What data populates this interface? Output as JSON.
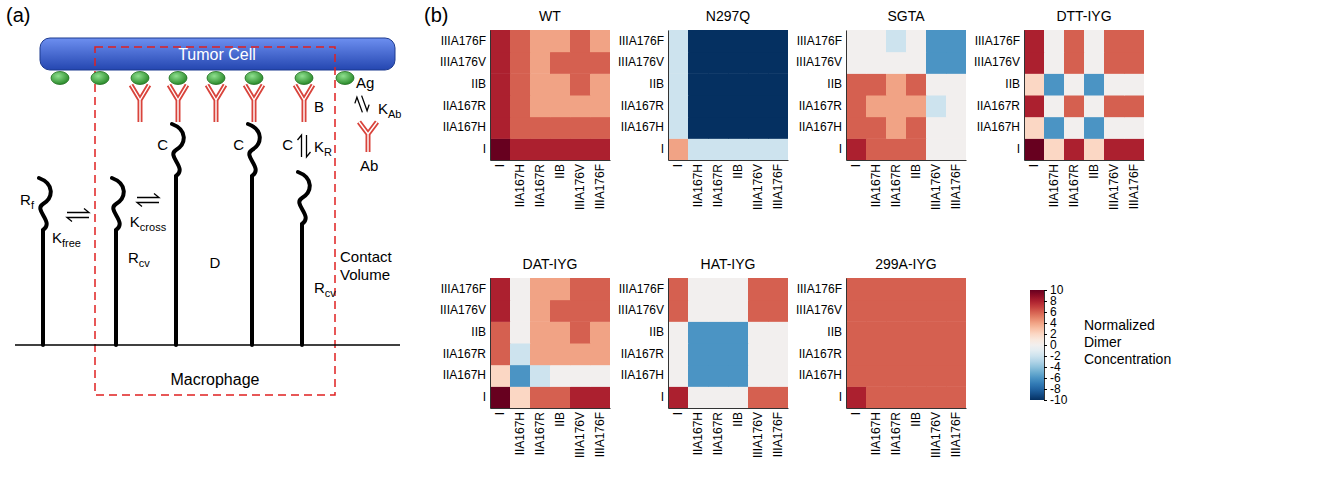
{
  "panel_labels": [
    "(a)",
    "(b)"
  ],
  "diagram": {
    "labels": [
      {
        "text": "Tumor Cell"
      },
      {
        "text": "Ag"
      },
      {
        "text": "K",
        "sub": "Ab"
      },
      {
        "text": "Ab"
      },
      {
        "text": "B"
      },
      {
        "text": "R",
        "sub": "f"
      },
      {
        "text": "K",
        "sub": "free"
      },
      {
        "text": "R",
        "sub": "cv"
      },
      {
        "text": "C"
      },
      {
        "text": "K",
        "sub": "cross"
      },
      {
        "text": "C"
      },
      {
        "text": "D"
      },
      {
        "text": "C"
      },
      {
        "text": "K",
        "sub": "R"
      },
      {
        "text": "R",
        "sub": "cv"
      },
      {
        "text": "Contact Volume"
      },
      {
        "text": "Macrophage"
      }
    ]
  },
  "chart_data": [
    {
      "type": "heatmap",
      "title": "WT",
      "x": [
        "I",
        "IIA167H",
        "IIA167R",
        "IIB",
        "IIIA176V",
        "IIIA176F"
      ],
      "y": [
        "I",
        "IIA167H",
        "IIA167R",
        "IIB",
        "IIIA176V",
        "IIIA176F"
      ],
      "cells": [
        [
          10,
          8,
          8,
          8,
          8,
          8
        ],
        [
          8,
          6,
          6,
          6,
          6,
          6
        ],
        [
          8,
          6,
          4,
          4,
          4,
          4
        ],
        [
          8,
          6,
          4,
          4,
          6,
          4
        ],
        [
          8,
          6,
          4,
          6,
          6,
          6
        ],
        [
          8,
          6,
          4,
          4,
          6,
          4
        ]
      ]
    },
    {
      "type": "heatmap",
      "title": "N297Q",
      "x": [
        "I",
        "IIA167H",
        "IIA167R",
        "IIB",
        "IIIA176V",
        "IIIA176F"
      ],
      "y": [
        "I",
        "IIA167H",
        "IIA167R",
        "IIB",
        "IIIA176V",
        "IIIA176F"
      ],
      "cells": [
        [
          4,
          -2,
          -2,
          -2,
          -2,
          -2
        ],
        [
          -2,
          -10,
          -10,
          -10,
          -10,
          -10
        ],
        [
          -2,
          -10,
          -10,
          -10,
          -10,
          -10
        ],
        [
          -2,
          -10,
          -10,
          -10,
          -10,
          -10
        ],
        [
          -2,
          -10,
          -10,
          -10,
          -10,
          -10
        ],
        [
          -2,
          -10,
          -10,
          -10,
          -10,
          -10
        ]
      ]
    },
    {
      "type": "heatmap",
      "title": "SGTA",
      "x": [
        "I",
        "IIA167H",
        "IIA167R",
        "IIB",
        "IIIA176V",
        "IIIA176F"
      ],
      "y": [
        "I",
        "IIA167H",
        "IIA167R",
        "IIB",
        "IIIA176V",
        "IIIA176F"
      ],
      "cells": [
        [
          8,
          6,
          6,
          6,
          0,
          0
        ],
        [
          6,
          6,
          4,
          6,
          0,
          0
        ],
        [
          6,
          4,
          4,
          4,
          -2,
          0
        ],
        [
          6,
          6,
          4,
          6,
          0,
          0
        ],
        [
          0,
          0,
          0,
          0,
          -6,
          -6
        ],
        [
          0,
          0,
          -2,
          0,
          -6,
          -6
        ]
      ]
    },
    {
      "type": "heatmap",
      "title": "DTT-IYG",
      "x": [
        "I",
        "IIA167H",
        "IIA167R",
        "IIB",
        "IIIA176V",
        "IIIA176F"
      ],
      "y": [
        "I",
        "IIA167H",
        "IIA167R",
        "IIB",
        "IIIA176V",
        "IIIA176F"
      ],
      "cells": [
        [
          10,
          2,
          8,
          2,
          8,
          8
        ],
        [
          2,
          -6,
          0,
          -6,
          0,
          0
        ],
        [
          8,
          0,
          6,
          0,
          6,
          6
        ],
        [
          2,
          -6,
          0,
          -6,
          0,
          0
        ],
        [
          8,
          0,
          6,
          0,
          6,
          6
        ],
        [
          8,
          0,
          6,
          0,
          6,
          6
        ]
      ]
    },
    {
      "type": "heatmap",
      "title": "DAT-IYG",
      "x": [
        "I",
        "IIA167H",
        "IIA167R",
        "IIB",
        "IIIA176V",
        "IIIA176F"
      ],
      "y": [
        "I",
        "IIA167H",
        "IIA167R",
        "IIB",
        "IIIA176V",
        "IIIA176F"
      ],
      "cells": [
        [
          10,
          2,
          6,
          6,
          8,
          8
        ],
        [
          2,
          -6,
          -2,
          0,
          0,
          0
        ],
        [
          6,
          -2,
          4,
          4,
          4,
          4
        ],
        [
          6,
          0,
          4,
          4,
          6,
          4
        ],
        [
          8,
          0,
          4,
          6,
          6,
          6
        ],
        [
          8,
          0,
          4,
          4,
          6,
          6
        ]
      ]
    },
    {
      "type": "heatmap",
      "title": "HAT-IYG",
      "x": [
        "I",
        "IIA167H",
        "IIA167R",
        "IIB",
        "IIIA176V",
        "IIIA176F"
      ],
      "y": [
        "I",
        "IIA167H",
        "IIA167R",
        "IIB",
        "IIIA176V",
        "IIIA176F"
      ],
      "cells": [
        [
          8,
          0,
          0,
          0,
          6,
          6
        ],
        [
          0,
          -6,
          -6,
          -6,
          0,
          0
        ],
        [
          0,
          -6,
          -6,
          -6,
          0,
          0
        ],
        [
          0,
          -6,
          -6,
          -6,
          0,
          0
        ],
        [
          6,
          0,
          0,
          0,
          6,
          6
        ],
        [
          6,
          0,
          0,
          0,
          6,
          6
        ]
      ]
    },
    {
      "type": "heatmap",
      "title": "299A-IYG",
      "x": [
        "I",
        "IIA167H",
        "IIA167R",
        "IIB",
        "IIIA176V",
        "IIIA176F"
      ],
      "y": [
        "I",
        "IIA167H",
        "IIA167R",
        "IIB",
        "IIIA176V",
        "IIIA176F"
      ],
      "cells": [
        [
          8,
          6,
          6,
          6,
          6,
          6
        ],
        [
          6,
          6,
          6,
          6,
          6,
          6
        ],
        [
          6,
          6,
          6,
          6,
          6,
          6
        ],
        [
          6,
          6,
          6,
          6,
          6,
          6
        ],
        [
          6,
          6,
          6,
          6,
          6,
          6
        ],
        [
          6,
          6,
          6,
          6,
          6,
          6
        ]
      ]
    }
  ],
  "colorbar": {
    "label": "Normalized Dimer Concentration",
    "range": [
      -10,
      10
    ],
    "ticks": [
      10,
      8,
      6,
      4,
      2,
      0,
      -2,
      -4,
      -6,
      -8,
      -10
    ]
  }
}
